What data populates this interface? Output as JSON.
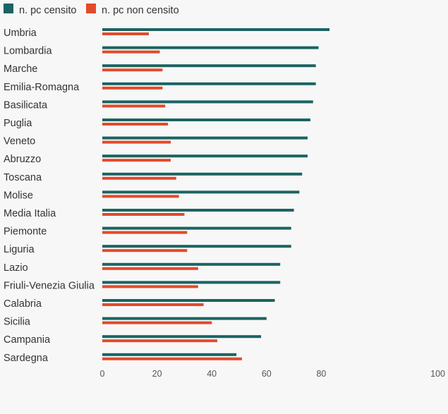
{
  "chart_data": {
    "type": "bar",
    "orientation": "horizontal",
    "categories": [
      "Umbria",
      "Lombardia",
      "Marche",
      "Emilia-Romagna",
      "Basilicata",
      "Puglia",
      "Veneto",
      "Abruzzo",
      "Toscana",
      "Molise",
      "Media Italia",
      "Piemonte",
      "Liguria",
      "Lazio",
      "Friuli-Venezia Giulia",
      "Calabria",
      "Sicilia",
      "Campania",
      "Sardegna"
    ],
    "series": [
      {
        "name": "n. pc censito",
        "color": "#1a6462",
        "values": [
          83,
          79,
          78,
          78,
          77,
          76,
          75,
          75,
          73,
          72,
          70,
          69,
          69,
          65,
          65,
          63,
          60,
          58,
          49
        ]
      },
      {
        "name": "n. pc non censito",
        "color": "#e24a2b",
        "values": [
          17,
          21,
          22,
          22,
          23,
          24,
          25,
          25,
          27,
          28,
          30,
          31,
          31,
          35,
          35,
          37,
          40,
          42,
          51
        ]
      }
    ],
    "xlim": [
      0,
      100
    ],
    "xticks": [
      "0",
      "20",
      "40",
      "60",
      "80",
      "100"
    ],
    "legend": "top-left",
    "grid": false
  }
}
